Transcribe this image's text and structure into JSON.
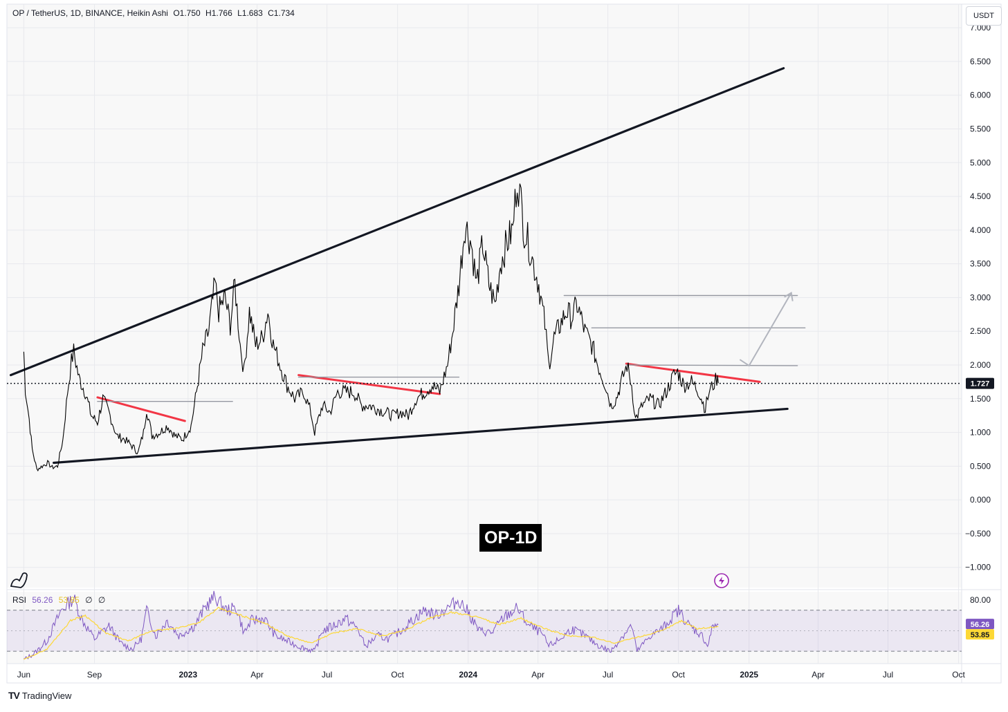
{
  "header": {
    "symbol": "OP / TetherUS, 1D, BINANCE, Heikin Ashi",
    "open": "O1.750",
    "high": "H1.766",
    "low": "L1.683",
    "close": "C1.734",
    "currency": "USDT"
  },
  "annotation_label": "OP-1D",
  "rsi_legend": {
    "name": "RSI",
    "value": "56.26",
    "ma": "53.85",
    "extra1": "∅",
    "extra2": "∅"
  },
  "brand": "TradingView",
  "colors": {
    "price": "#000000",
    "trendline": "#131722",
    "red_line": "#f23645",
    "grey_line": "#9598a1",
    "rsi_line": "#7e57c2",
    "rsi_ma": "#fdd835",
    "rsi_band": "#7e57c2",
    "last_price_label": "#131722",
    "rsi_label": "#7e57c2",
    "ma_label": "#fdd835"
  },
  "chart_data": {
    "type": "line",
    "title": "OP / TetherUS, 1D, BINANCE, Heikin Ashi",
    "y_axis": {
      "ticks": [
        "7.000",
        "6.500",
        "6.000",
        "5.500",
        "5.000",
        "4.500",
        "4.000",
        "3.500",
        "3.000",
        "2.500",
        "2.000",
        "1.500",
        "1.000",
        "0.500",
        "0.000",
        "−0.500",
        "−1.000"
      ],
      "tick_values": [
        7,
        6.5,
        6,
        5.5,
        5,
        4.5,
        4,
        3.5,
        3,
        2.5,
        2,
        1.5,
        1,
        0.5,
        0,
        -0.5,
        -1
      ],
      "range": [
        -1.3,
        7.35
      ]
    },
    "x_axis": {
      "ticks": [
        "Jun",
        "Sep",
        "2023",
        "Apr",
        "Jul",
        "Oct",
        "2024",
        "Apr",
        "Jul",
        "Oct",
        "2025",
        "Apr",
        "Jul",
        "Oct"
      ],
      "tick_dates": [
        "2022-06-01",
        "2022-09-01",
        "2023-01-01",
        "2023-04-01",
        "2023-07-01",
        "2023-10-01",
        "2024-01-01",
        "2024-04-01",
        "2024-07-01",
        "2024-10-01",
        "2025-01-01",
        "2025-04-01",
        "2025-07-01",
        "2025-10-01"
      ],
      "bold_ticks": [
        "2023",
        "2024",
        "2025"
      ],
      "range": [
        "2022-05-10",
        "2025-10-05"
      ]
    },
    "last_price": {
      "value": 1.727,
      "label": "1.727"
    },
    "price_series": {
      "name": "",
      "points": [
        [
          "2022-06-01",
          2.2
        ],
        [
          "2022-06-03",
          1.65
        ],
        [
          "2022-06-08",
          1.2
        ],
        [
          "2022-06-12",
          0.75
        ],
        [
          "2022-06-18",
          0.45
        ],
        [
          "2022-06-25",
          0.5
        ],
        [
          "2022-07-02",
          0.55
        ],
        [
          "2022-07-08",
          0.48
        ],
        [
          "2022-07-15",
          0.5
        ],
        [
          "2022-07-22",
          0.9
        ],
        [
          "2022-07-28",
          1.6
        ],
        [
          "2022-08-02",
          2.05
        ],
        [
          "2022-08-05",
          2.2
        ],
        [
          "2022-08-12",
          1.8
        ],
        [
          "2022-08-20",
          1.6
        ],
        [
          "2022-08-28",
          1.25
        ],
        [
          "2022-09-05",
          1.15
        ],
        [
          "2022-09-12",
          1.5
        ],
        [
          "2022-09-20",
          1.3
        ],
        [
          "2022-09-30",
          0.95
        ],
        [
          "2022-10-10",
          0.9
        ],
        [
          "2022-10-20",
          0.8
        ],
        [
          "2022-10-28",
          0.7
        ],
        [
          "2022-11-04",
          1.0
        ],
        [
          "2022-11-08",
          1.35
        ],
        [
          "2022-11-15",
          0.95
        ],
        [
          "2022-11-25",
          1.0
        ],
        [
          "2022-12-05",
          1.1
        ],
        [
          "2022-12-15",
          0.95
        ],
        [
          "2022-12-25",
          0.9
        ],
        [
          "2023-01-05",
          1.1
        ],
        [
          "2023-01-12",
          1.6
        ],
        [
          "2023-01-20",
          2.2
        ],
        [
          "2023-01-28",
          2.5
        ],
        [
          "2023-02-05",
          3.2
        ],
        [
          "2023-02-10",
          2.8
        ],
        [
          "2023-02-18",
          3.0
        ],
        [
          "2023-02-25",
          2.6
        ],
        [
          "2023-03-03",
          3.2
        ],
        [
          "2023-03-10",
          2.3
        ],
        [
          "2023-03-15",
          1.9
        ],
        [
          "2023-03-22",
          2.8
        ],
        [
          "2023-03-30",
          2.3
        ],
        [
          "2023-04-08",
          2.4
        ],
        [
          "2023-04-15",
          2.8
        ],
        [
          "2023-04-22",
          2.3
        ],
        [
          "2023-05-01",
          2.0
        ],
        [
          "2023-05-10",
          1.7
        ],
        [
          "2023-05-20",
          1.5
        ],
        [
          "2023-06-01",
          1.6
        ],
        [
          "2023-06-10",
          1.3
        ],
        [
          "2023-06-15",
          1.0
        ],
        [
          "2023-06-25",
          1.4
        ],
        [
          "2023-07-05",
          1.3
        ],
        [
          "2023-07-15",
          1.6
        ],
        [
          "2023-07-25",
          1.6
        ],
        [
          "2023-08-05",
          1.6
        ],
        [
          "2023-08-15",
          1.4
        ],
        [
          "2023-08-25",
          1.4
        ],
        [
          "2023-09-05",
          1.35
        ],
        [
          "2023-09-15",
          1.3
        ],
        [
          "2023-09-25",
          1.25
        ],
        [
          "2023-10-05",
          1.3
        ],
        [
          "2023-10-15",
          1.25
        ],
        [
          "2023-10-25",
          1.5
        ],
        [
          "2023-11-05",
          1.6
        ],
        [
          "2023-11-15",
          1.7
        ],
        [
          "2023-11-25",
          1.6
        ],
        [
          "2023-12-05",
          2.0
        ],
        [
          "2023-12-12",
          2.5
        ],
        [
          "2023-12-20",
          3.2
        ],
        [
          "2023-12-28",
          4.1
        ],
        [
          "2024-01-05",
          3.8
        ],
        [
          "2024-01-12",
          3.2
        ],
        [
          "2024-01-20",
          3.8
        ],
        [
          "2024-01-28",
          3.2
        ],
        [
          "2024-02-05",
          2.9
        ],
        [
          "2024-02-12",
          3.5
        ],
        [
          "2024-02-20",
          3.8
        ],
        [
          "2024-02-28",
          4.0
        ],
        [
          "2024-03-05",
          4.8
        ],
        [
          "2024-03-10",
          4.4
        ],
        [
          "2024-03-14",
          4.0
        ],
        [
          "2024-03-20",
          3.8
        ],
        [
          "2024-03-26",
          3.5
        ],
        [
          "2024-04-02",
          3.2
        ],
        [
          "2024-04-10",
          2.6
        ],
        [
          "2024-04-15",
          2.0
        ],
        [
          "2024-04-22",
          2.4
        ],
        [
          "2024-04-30",
          2.6
        ],
        [
          "2024-05-08",
          2.8
        ],
        [
          "2024-05-15",
          2.7
        ],
        [
          "2024-05-22",
          2.9
        ],
        [
          "2024-06-01",
          2.5
        ],
        [
          "2024-06-10",
          2.3
        ],
        [
          "2024-06-18",
          2.0
        ],
        [
          "2024-06-28",
          1.7
        ],
        [
          "2024-07-05",
          1.4
        ],
        [
          "2024-07-12",
          1.5
        ],
        [
          "2024-07-20",
          1.8
        ],
        [
          "2024-07-26",
          2.0
        ],
        [
          "2024-08-01",
          1.7
        ],
        [
          "2024-08-06",
          1.2
        ],
        [
          "2024-08-15",
          1.4
        ],
        [
          "2024-08-25",
          1.5
        ],
        [
          "2024-09-05",
          1.4
        ],
        [
          "2024-09-15",
          1.6
        ],
        [
          "2024-09-25",
          1.85
        ],
        [
          "2024-09-30",
          1.9
        ],
        [
          "2024-10-08",
          1.7
        ],
        [
          "2024-10-18",
          1.75
        ],
        [
          "2024-10-28",
          1.6
        ],
        [
          "2024-11-05",
          1.35
        ],
        [
          "2024-11-10",
          1.6
        ],
        [
          "2024-11-15",
          1.7
        ],
        [
          "2024-11-20",
          1.8
        ],
        [
          "2024-11-22",
          1.73
        ]
      ]
    },
    "trendlines": [
      {
        "kind": "upper-support-resistance",
        "from": [
          "2022-05-15",
          1.85
        ],
        "to": [
          "2025-02-15",
          6.4
        ]
      },
      {
        "kind": "lower-support",
        "from": [
          "2022-07-10",
          0.55
        ],
        "to": [
          "2025-02-20",
          1.35
        ]
      },
      {
        "kind": "red-descending",
        "from": [
          "2022-09-05",
          1.52
        ],
        "to": [
          "2022-12-28",
          1.17
        ]
      },
      {
        "kind": "red-descending",
        "from": [
          "2023-05-25",
          1.85
        ],
        "to": [
          "2023-11-25",
          1.57
        ]
      },
      {
        "kind": "red-descending",
        "from": [
          "2024-07-25",
          2.02
        ],
        "to": [
          "2025-01-15",
          1.75
        ]
      },
      {
        "kind": "grey-horizontal",
        "from": [
          "2022-09-05",
          1.46
        ],
        "to": [
          "2023-02-28",
          1.46
        ]
      },
      {
        "kind": "grey-horizontal",
        "from": [
          "2023-05-25",
          1.82
        ],
        "to": [
          "2023-12-20",
          1.82
        ]
      },
      {
        "kind": "grey-horizontal",
        "from": [
          "2024-07-25",
          2.0
        ],
        "to": [
          "2025-03-05",
          1.99
        ]
      },
      {
        "kind": "grey-horizontal",
        "from": [
          "2024-06-10",
          2.55
        ],
        "to": [
          "2025-03-15",
          2.55
        ]
      },
      {
        "kind": "grey-horizontal",
        "from": [
          "2024-05-05",
          3.03
        ],
        "to": [
          "2025-03-05",
          3.03
        ]
      }
    ],
    "projection_arrow": [
      [
        "2024-12-20",
        2.08
      ],
      [
        "2025-01-01",
        1.99
      ],
      [
        "2025-02-25",
        3.07
      ]
    ],
    "rsi": {
      "name": "RSI",
      "value": 56.26,
      "ma_value": 53.85,
      "upper_band": 70,
      "lower_band": 30,
      "ticks": [
        "80.00"
      ],
      "range": [
        18,
        88
      ],
      "points": [
        [
          "2022-06-01",
          22
        ],
        [
          "2022-06-15",
          28
        ],
        [
          "2022-07-01",
          40
        ],
        [
          "2022-07-20",
          70
        ],
        [
          "2022-08-05",
          82
        ],
        [
          "2022-08-15",
          62
        ],
        [
          "2022-09-01",
          42
        ],
        [
          "2022-09-20",
          55
        ],
        [
          "2022-10-05",
          38
        ],
        [
          "2022-10-20",
          32
        ],
        [
          "2022-11-01",
          42
        ],
        [
          "2022-11-08",
          70
        ],
        [
          "2022-11-20",
          45
        ],
        [
          "2022-12-05",
          60
        ],
        [
          "2022-12-20",
          45
        ],
        [
          "2023-01-10",
          55
        ],
        [
          "2023-01-25",
          75
        ],
        [
          "2023-02-05",
          83
        ],
        [
          "2023-02-20",
          70
        ],
        [
          "2023-03-05",
          72
        ],
        [
          "2023-03-15",
          48
        ],
        [
          "2023-03-25",
          60
        ],
        [
          "2023-04-10",
          62
        ],
        [
          "2023-04-25",
          45
        ],
        [
          "2023-05-10",
          40
        ],
        [
          "2023-05-25",
          35
        ],
        [
          "2023-06-15",
          30
        ],
        [
          "2023-06-25",
          50
        ],
        [
          "2023-07-10",
          55
        ],
        [
          "2023-07-25",
          62
        ],
        [
          "2023-08-10",
          52
        ],
        [
          "2023-08-20",
          35
        ],
        [
          "2023-09-05",
          45
        ],
        [
          "2023-09-20",
          42
        ],
        [
          "2023-10-05",
          50
        ],
        [
          "2023-10-20",
          60
        ],
        [
          "2023-11-05",
          70
        ],
        [
          "2023-11-20",
          65
        ],
        [
          "2023-12-05",
          72
        ],
        [
          "2023-12-20",
          80
        ],
        [
          "2024-01-01",
          68
        ],
        [
          "2024-01-15",
          50
        ],
        [
          "2024-02-01",
          48
        ],
        [
          "2024-02-15",
          62
        ],
        [
          "2024-03-05",
          72
        ],
        [
          "2024-03-20",
          55
        ],
        [
          "2024-04-05",
          48
        ],
        [
          "2024-04-15",
          35
        ],
        [
          "2024-04-30",
          42
        ],
        [
          "2024-05-15",
          52
        ],
        [
          "2024-06-01",
          45
        ],
        [
          "2024-06-20",
          35
        ],
        [
          "2024-07-05",
          30
        ],
        [
          "2024-07-20",
          45
        ],
        [
          "2024-08-01",
          55
        ],
        [
          "2024-08-08",
          30
        ],
        [
          "2024-08-25",
          45
        ],
        [
          "2024-09-10",
          52
        ],
        [
          "2024-09-25",
          65
        ],
        [
          "2024-10-01",
          70
        ],
        [
          "2024-10-15",
          55
        ],
        [
          "2024-11-01",
          45
        ],
        [
          "2024-11-08",
          35
        ],
        [
          "2024-11-15",
          55
        ],
        [
          "2024-11-22",
          56
        ]
      ],
      "ma_points": [
        [
          "2022-06-01",
          22
        ],
        [
          "2022-07-01",
          32
        ],
        [
          "2022-08-01",
          60
        ],
        [
          "2022-08-20",
          65
        ],
        [
          "2022-09-15",
          48
        ],
        [
          "2022-10-15",
          40
        ],
        [
          "2022-11-15",
          50
        ],
        [
          "2022-12-15",
          52
        ],
        [
          "2023-01-15",
          58
        ],
        [
          "2023-02-10",
          72
        ],
        [
          "2023-03-10",
          65
        ],
        [
          "2023-04-10",
          58
        ],
        [
          "2023-05-10",
          45
        ],
        [
          "2023-06-10",
          38
        ],
        [
          "2023-07-10",
          48
        ],
        [
          "2023-08-10",
          52
        ],
        [
          "2023-09-10",
          45
        ],
        [
          "2023-10-10",
          50
        ],
        [
          "2023-11-10",
          62
        ],
        [
          "2023-12-10",
          68
        ],
        [
          "2024-01-10",
          64
        ],
        [
          "2024-02-10",
          56
        ],
        [
          "2024-03-10",
          62
        ],
        [
          "2024-04-10",
          52
        ],
        [
          "2024-05-10",
          45
        ],
        [
          "2024-06-10",
          44
        ],
        [
          "2024-07-10",
          38
        ],
        [
          "2024-08-10",
          44
        ],
        [
          "2024-09-10",
          50
        ],
        [
          "2024-10-05",
          60
        ],
        [
          "2024-10-25",
          52
        ],
        [
          "2024-11-22",
          54
        ]
      ]
    }
  }
}
